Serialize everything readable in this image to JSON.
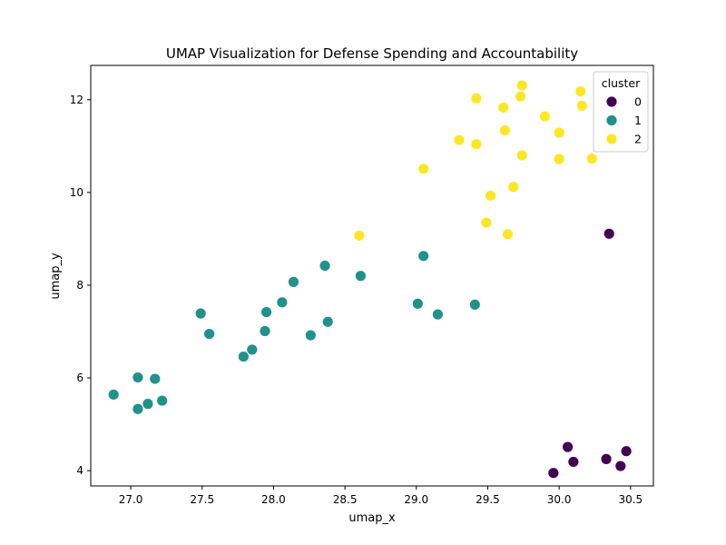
{
  "chart_data": {
    "type": "scatter",
    "title": "UMAP Visualization for Defense Spending and Accountability",
    "xlabel": "umap_x",
    "ylabel": "umap_y",
    "xlim": [
      26.72,
      30.66
    ],
    "ylim": [
      3.67,
      12.74
    ],
    "x_ticks": [
      27.0,
      27.5,
      28.0,
      28.5,
      29.0,
      29.5,
      30.0,
      30.5
    ],
    "x_tick_labels": [
      "27.0",
      "27.5",
      "28.0",
      "28.5",
      "29.0",
      "29.5",
      "30.0",
      "30.5"
    ],
    "y_ticks": [
      4,
      6,
      8,
      10,
      12
    ],
    "y_tick_labels": [
      "4",
      "6",
      "8",
      "10",
      "12"
    ],
    "grid": false,
    "legend": {
      "title": "cluster",
      "placement": "top-right"
    },
    "series": [
      {
        "name": "0",
        "color": "#440154",
        "points": [
          [
            30.35,
            9.11
          ],
          [
            30.06,
            4.51
          ],
          [
            29.96,
            3.95
          ],
          [
            30.1,
            4.19
          ],
          [
            30.33,
            4.25
          ],
          [
            30.47,
            4.42
          ],
          [
            30.43,
            4.1
          ]
        ]
      },
      {
        "name": "1",
        "color": "#21918c",
        "points": [
          [
            26.88,
            5.64
          ],
          [
            27.05,
            6.01
          ],
          [
            27.05,
            5.33
          ],
          [
            27.12,
            5.44
          ],
          [
            27.17,
            5.98
          ],
          [
            27.22,
            5.51
          ],
          [
            27.49,
            7.39
          ],
          [
            27.55,
            6.95
          ],
          [
            27.79,
            6.46
          ],
          [
            27.85,
            6.61
          ],
          [
            27.94,
            7.01
          ],
          [
            27.95,
            7.42
          ],
          [
            28.06,
            7.63
          ],
          [
            28.14,
            8.07
          ],
          [
            28.26,
            6.92
          ],
          [
            28.36,
            8.42
          ],
          [
            28.38,
            7.21
          ],
          [
            28.61,
            8.2
          ],
          [
            29.01,
            7.6
          ],
          [
            29.05,
            8.63
          ],
          [
            29.15,
            7.37
          ],
          [
            29.41,
            7.58
          ]
        ]
      },
      {
        "name": "2",
        "color": "#fde725",
        "points": [
          [
            28.6,
            9.07
          ],
          [
            29.05,
            10.51
          ],
          [
            29.3,
            11.13
          ],
          [
            29.42,
            11.04
          ],
          [
            29.42,
            12.03
          ],
          [
            29.49,
            9.35
          ],
          [
            29.52,
            9.93
          ],
          [
            29.61,
            11.83
          ],
          [
            29.62,
            11.34
          ],
          [
            29.64,
            9.1
          ],
          [
            29.68,
            10.12
          ],
          [
            29.73,
            12.07
          ],
          [
            29.74,
            10.8
          ],
          [
            29.74,
            12.31
          ],
          [
            29.9,
            11.64
          ],
          [
            30.0,
            11.29
          ],
          [
            30.0,
            10.72
          ],
          [
            30.15,
            12.18
          ],
          [
            30.16,
            11.87
          ],
          [
            30.23,
            10.73
          ]
        ]
      }
    ]
  }
}
